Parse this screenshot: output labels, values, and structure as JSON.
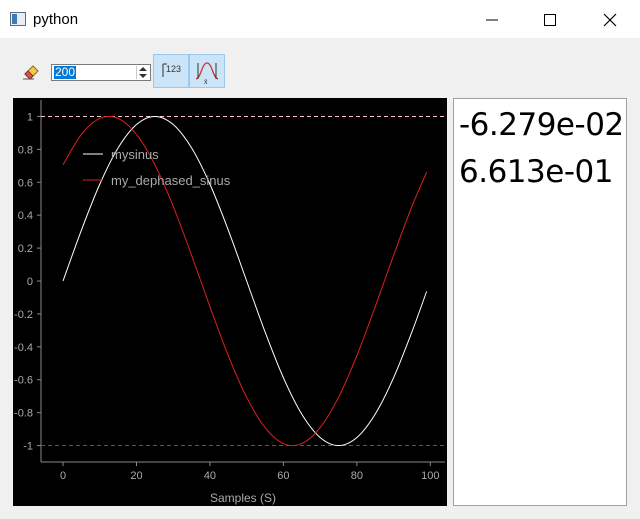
{
  "window": {
    "title": "python",
    "icon": "app-window-icon",
    "controls": [
      "minimize-icon",
      "maximize-icon",
      "close-icon"
    ]
  },
  "toolbar": {
    "clear_icon": "eraser-icon",
    "spin_value": "200",
    "number_format_icon": "number-format-icon",
    "fit_icon": "gaussian-fit-icon"
  },
  "chart_data": {
    "type": "line",
    "xlabel": "Samples (S)",
    "ylabel": "",
    "xlim": [
      -6,
      104
    ],
    "ylim": [
      -1.1,
      1.1
    ],
    "x_ticks": [
      0,
      20,
      40,
      60,
      80,
      100
    ],
    "y_ticks": [
      1,
      0.8,
      0.6,
      0.4,
      0.2,
      0,
      -0.2,
      -0.4,
      -0.6,
      -0.8,
      -1
    ],
    "y_tick_labels": [
      "1",
      "0.8",
      "0.6",
      "0.4",
      "0.2",
      "0",
      "-0.2",
      "-0.4",
      "-0.6",
      "-0.8",
      "-1"
    ],
    "x_tick_labels": [
      "0",
      "20",
      "40",
      "60",
      "80",
      "100"
    ],
    "legend": "top-left",
    "background": "#000000",
    "series": [
      {
        "name": "mysinus",
        "color": "#ffffff",
        "x": [
          0,
          5,
          10,
          15,
          20,
          25,
          30,
          35,
          40,
          45,
          50,
          55,
          60,
          65,
          70,
          75,
          80,
          85,
          90,
          95,
          99
        ],
        "y": [
          0.0,
          0.309,
          0.588,
          0.809,
          0.951,
          1.0,
          0.951,
          0.809,
          0.588,
          0.309,
          0.0,
          -0.309,
          -0.588,
          -0.809,
          -0.951,
          -1.0,
          -0.951,
          -0.809,
          -0.588,
          -0.309,
          -0.063
        ]
      },
      {
        "name": "my_dephased_sinus",
        "color": "#e02020",
        "x": [
          0,
          5,
          10,
          15,
          20,
          25,
          30,
          35,
          40,
          45,
          50,
          55,
          60,
          65,
          70,
          75,
          80,
          85,
          90,
          95,
          99
        ],
        "y": [
          0.707,
          0.891,
          0.988,
          0.988,
          0.891,
          0.707,
          0.454,
          0.156,
          -0.156,
          -0.454,
          -0.707,
          -0.891,
          -0.988,
          -0.988,
          -0.891,
          -0.707,
          -0.454,
          -0.156,
          0.156,
          0.454,
          0.661
        ]
      }
    ],
    "reference_lines": [
      {
        "y": 1,
        "color": "#ffc0cb",
        "style": "dashed"
      },
      {
        "y": -1,
        "color": "#e02020",
        "style": "dashed"
      }
    ]
  },
  "readout": {
    "values": [
      "-6.279e-02",
      "6.613e-01"
    ]
  }
}
